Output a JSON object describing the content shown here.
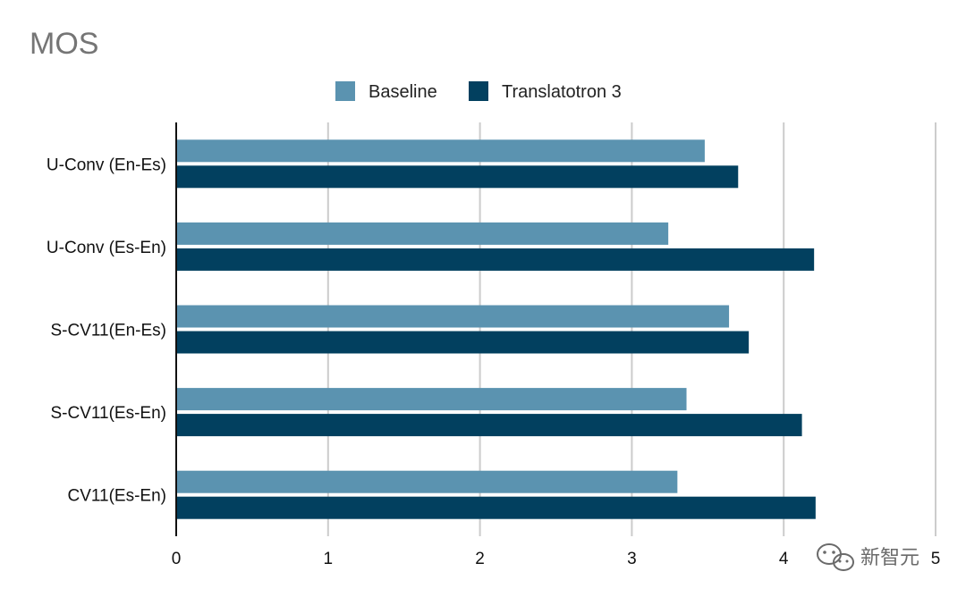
{
  "chart_data": {
    "type": "bar",
    "orientation": "horizontal",
    "title": "MOS",
    "categories": [
      "U-Conv (En-Es)",
      "U-Conv (Es-En)",
      "S-CV11(En-Es)",
      "S-CV11(Es-En)",
      "CV11(Es-En)"
    ],
    "series": [
      {
        "name": "Baseline",
        "color": "#5b93b0",
        "values": [
          3.48,
          3.24,
          3.64,
          3.36,
          3.3
        ]
      },
      {
        "name": "Translatotron 3",
        "color": "#02405f",
        "values": [
          3.7,
          4.2,
          3.77,
          4.12,
          4.21
        ]
      }
    ],
    "xlim": [
      0,
      5
    ],
    "xticks": [
      "0",
      "1",
      "2",
      "3",
      "4",
      "5"
    ],
    "grid": true,
    "legend_position": "top-center"
  },
  "watermark": {
    "text": "新智元",
    "icon": "wechat-icon"
  }
}
